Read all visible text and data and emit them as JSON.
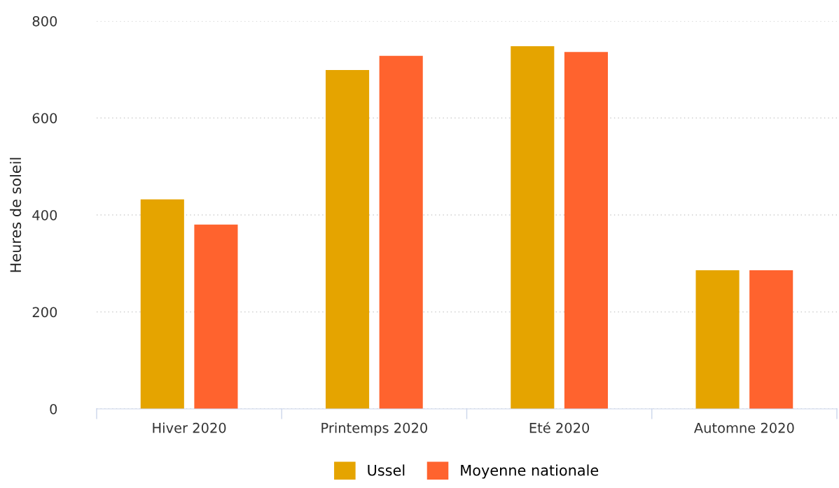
{
  "chart_data": {
    "type": "bar",
    "ylabel": "Heures de soleil",
    "categories": [
      "Hiver 2020",
      "Printemps 2020",
      "Eté 2020",
      "Automne 2020"
    ],
    "series": [
      {
        "name": "Ussel",
        "color": "#e5a400",
        "values": [
          432,
          699,
          748,
          286
        ]
      },
      {
        "name": "Moyenne nationale",
        "color": "#ff632e",
        "values": [
          380,
          728,
          736,
          286
        ]
      }
    ],
    "ylim": [
      0,
      800
    ],
    "yticks": [
      0,
      200,
      400,
      600,
      800
    ],
    "grid": "y",
    "legend": "bottom"
  }
}
